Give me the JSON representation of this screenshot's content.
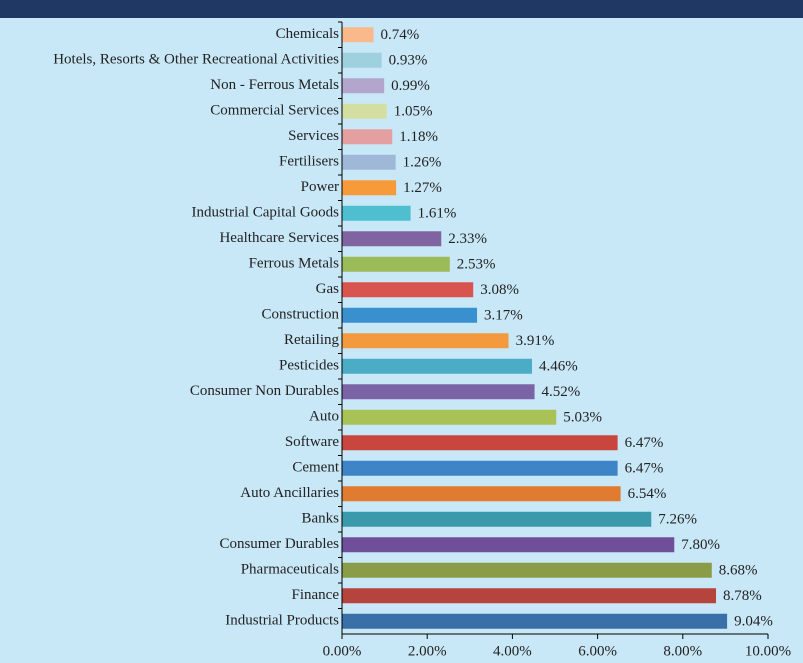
{
  "chart_data": {
    "type": "bar",
    "orientation": "horizontal",
    "categories": [
      "Chemicals",
      "Hotels, Resorts & Other Recreational Activities",
      "Non - Ferrous Metals",
      "Commercial Services",
      "Services",
      "Fertilisers",
      "Power",
      "Industrial Capital Goods",
      "Healthcare Services",
      "Ferrous Metals",
      "Gas",
      "Construction",
      "Retailing",
      "Pesticides",
      "Consumer Non Durables",
      "Auto",
      "Software",
      "Cement",
      "Auto Ancillaries",
      "Banks",
      "Consumer Durables",
      "Pharmaceuticals",
      "Finance",
      "Industrial Products"
    ],
    "values": [
      0.74,
      0.93,
      0.99,
      1.05,
      1.18,
      1.26,
      1.27,
      1.61,
      2.33,
      2.53,
      3.08,
      3.17,
      3.91,
      4.46,
      4.52,
      5.03,
      6.47,
      6.47,
      6.54,
      7.26,
      7.8,
      8.68,
      8.78,
      9.04
    ],
    "value_labels": [
      "0.74%",
      "0.93%",
      "0.99%",
      "1.05%",
      "1.18%",
      "1.26%",
      "1.27%",
      "1.61%",
      "2.33%",
      "2.53%",
      "3.08%",
      "3.17%",
      "3.91%",
      "4.46%",
      "4.52%",
      "5.03%",
      "6.47%",
      "6.47%",
      "6.54%",
      "7.26%",
      "7.80%",
      "8.68%",
      "8.78%",
      "9.04%"
    ],
    "colors": [
      "#f9b98a",
      "#9fd0de",
      "#b3a6cc",
      "#d4dea0",
      "#e4a0a0",
      "#9fb8d8",
      "#f79a3a",
      "#4fbfd0",
      "#8064a2",
      "#9bbb59",
      "#d9534f",
      "#3a8fcf",
      "#f39a3e",
      "#4bacc6",
      "#7b64a6",
      "#a9c255",
      "#c9463f",
      "#3d85c6",
      "#e07b30",
      "#3a99aa",
      "#6f4f9a",
      "#8a9c48",
      "#b5443c",
      "#3a6fa8"
    ],
    "xlim": [
      0,
      10
    ],
    "xticks": [
      {
        "value": 0,
        "label": "0.00%"
      },
      {
        "value": 2,
        "label": "2.00%"
      },
      {
        "value": 4,
        "label": "4.00%"
      },
      {
        "value": 6,
        "label": "6.00%"
      },
      {
        "value": 8,
        "label": "8.00%"
      },
      {
        "value": 10,
        "label": "10.00%"
      }
    ],
    "grid": false
  }
}
